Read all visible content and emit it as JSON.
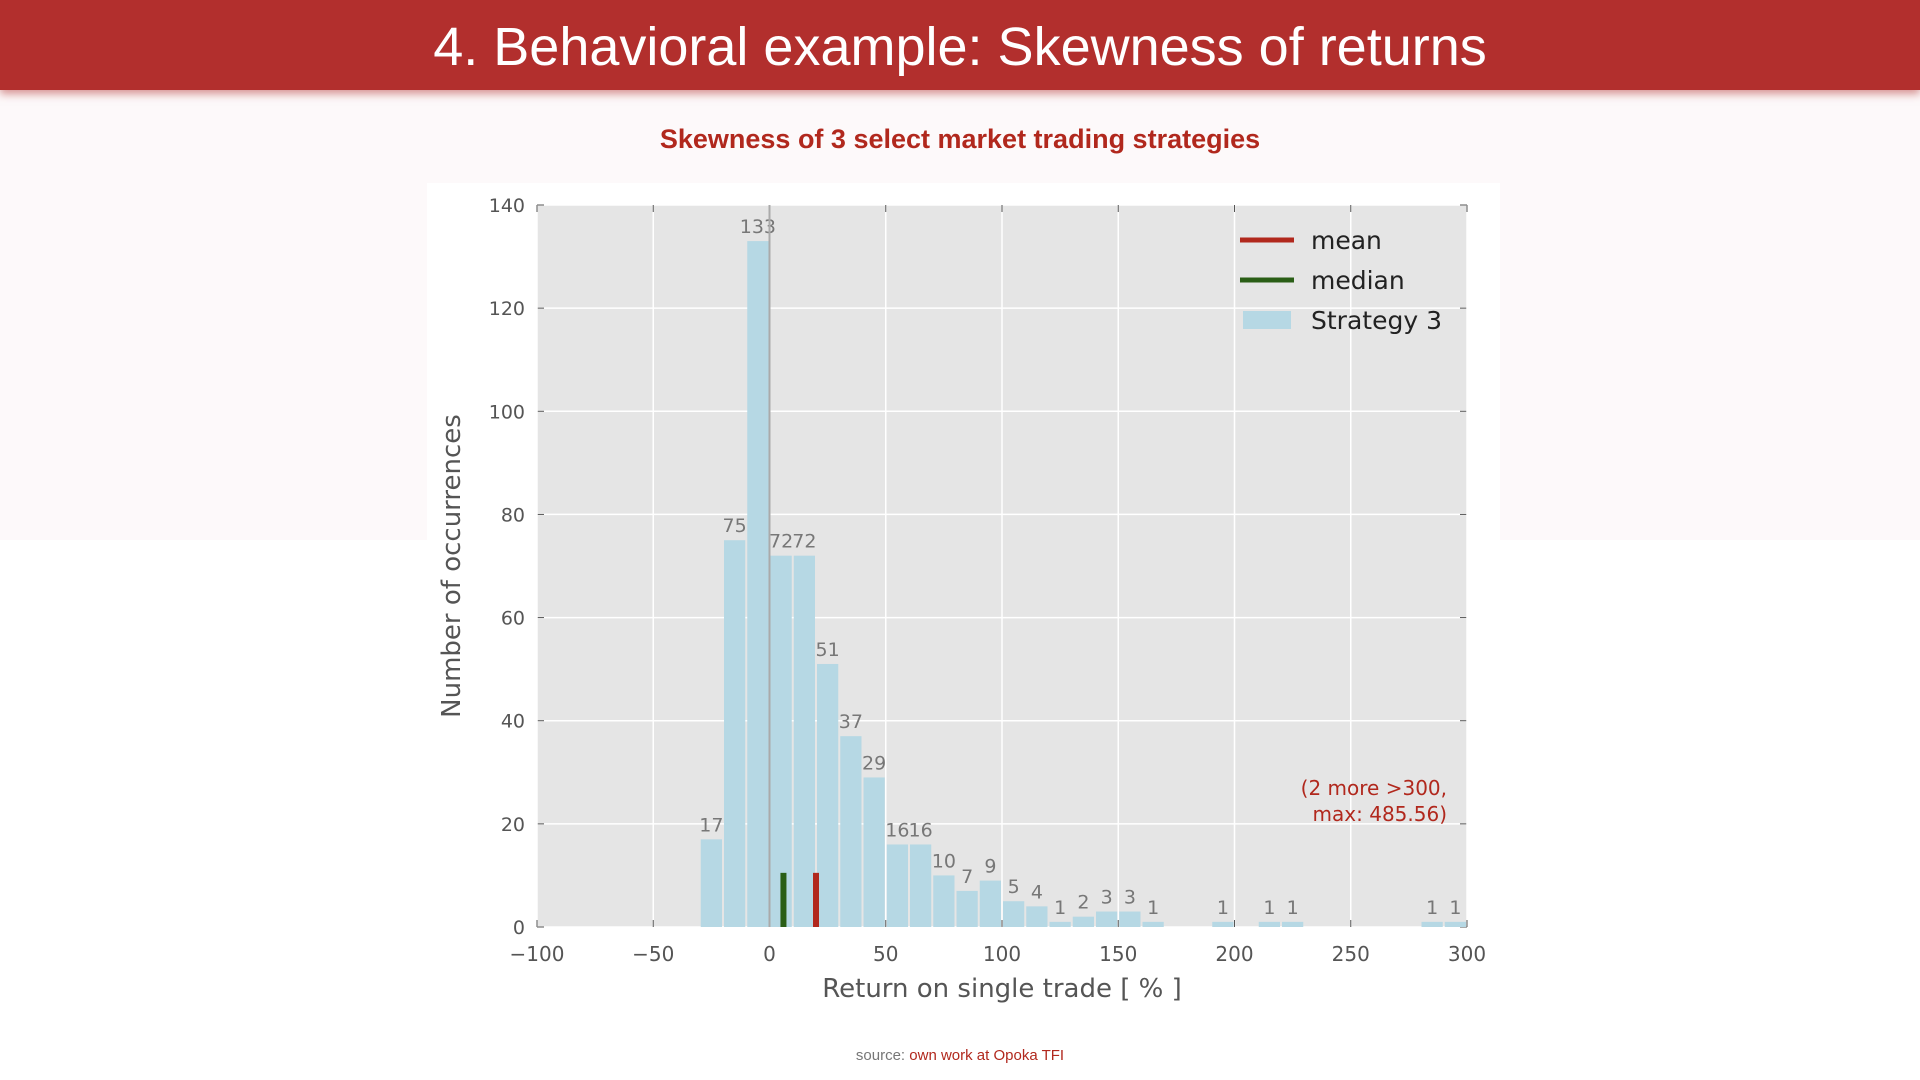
{
  "header": {
    "title": "4. Behavioral example: Skewness of returns"
  },
  "subtitle": "Skewness of 3 select market trading strategies",
  "source": {
    "label": "source:",
    "link": "own work at Opoka TFI"
  },
  "chart_data": {
    "type": "bar",
    "xlabel": "Return on single trade [ % ]",
    "ylabel": "Number of occurrences",
    "xlim": [
      -100,
      300
    ],
    "ylim": [
      0,
      140
    ],
    "xticks": [
      -100,
      -50,
      0,
      50,
      100,
      150,
      200,
      250,
      300
    ],
    "xtick_labels": [
      "−100",
      "−50",
      "0",
      "50",
      "100",
      "150",
      "200",
      "250",
      "300"
    ],
    "yticks": [
      0,
      20,
      40,
      60,
      80,
      100,
      120,
      140
    ],
    "ytick_labels": [
      "0",
      "20",
      "40",
      "60",
      "80",
      "100",
      "120",
      "140"
    ],
    "grid": true,
    "bin_width": 10,
    "bins": [
      {
        "start": -30,
        "count": 17
      },
      {
        "start": -20,
        "count": 75
      },
      {
        "start": -10,
        "count": 133
      },
      {
        "start": 0,
        "count": 72
      },
      {
        "start": 10,
        "count": 72
      },
      {
        "start": 20,
        "count": 51
      },
      {
        "start": 30,
        "count": 37
      },
      {
        "start": 40,
        "count": 29
      },
      {
        "start": 50,
        "count": 16
      },
      {
        "start": 60,
        "count": 16
      },
      {
        "start": 70,
        "count": 10
      },
      {
        "start": 80,
        "count": 7
      },
      {
        "start": 90,
        "count": 9
      },
      {
        "start": 100,
        "count": 5
      },
      {
        "start": 110,
        "count": 4
      },
      {
        "start": 120,
        "count": 1
      },
      {
        "start": 130,
        "count": 2
      },
      {
        "start": 140,
        "count": 3
      },
      {
        "start": 150,
        "count": 3
      },
      {
        "start": 160,
        "count": 1
      },
      {
        "start": 190,
        "count": 1
      },
      {
        "start": 210,
        "count": 1
      },
      {
        "start": 220,
        "count": 1
      },
      {
        "start": 280,
        "count": 1
      },
      {
        "start": 290,
        "count": 1
      }
    ],
    "mean": {
      "x": 20,
      "height": 10.5,
      "color": "#b1281d"
    },
    "median": {
      "x": 6,
      "height": 10.5,
      "color": "#2a5e16"
    },
    "zero_line": 0,
    "legend": {
      "placement": "top-right",
      "entries": [
        {
          "label": "mean",
          "color": "#b1281d",
          "kind": "line"
        },
        {
          "label": "median",
          "color": "#2a5e16",
          "kind": "line"
        },
        {
          "label": "Strategy 3",
          "color": "#b6d8e4",
          "kind": "patch"
        }
      ]
    },
    "annotation": {
      "lines": [
        "(2 more >300,",
        "max: 485.56)"
      ],
      "color": "#b1281d"
    },
    "colors": {
      "bar": "#b6d8e4",
      "plot_bg": "#e5e5e5",
      "grid": "#ffffff",
      "text": "#555555"
    }
  }
}
